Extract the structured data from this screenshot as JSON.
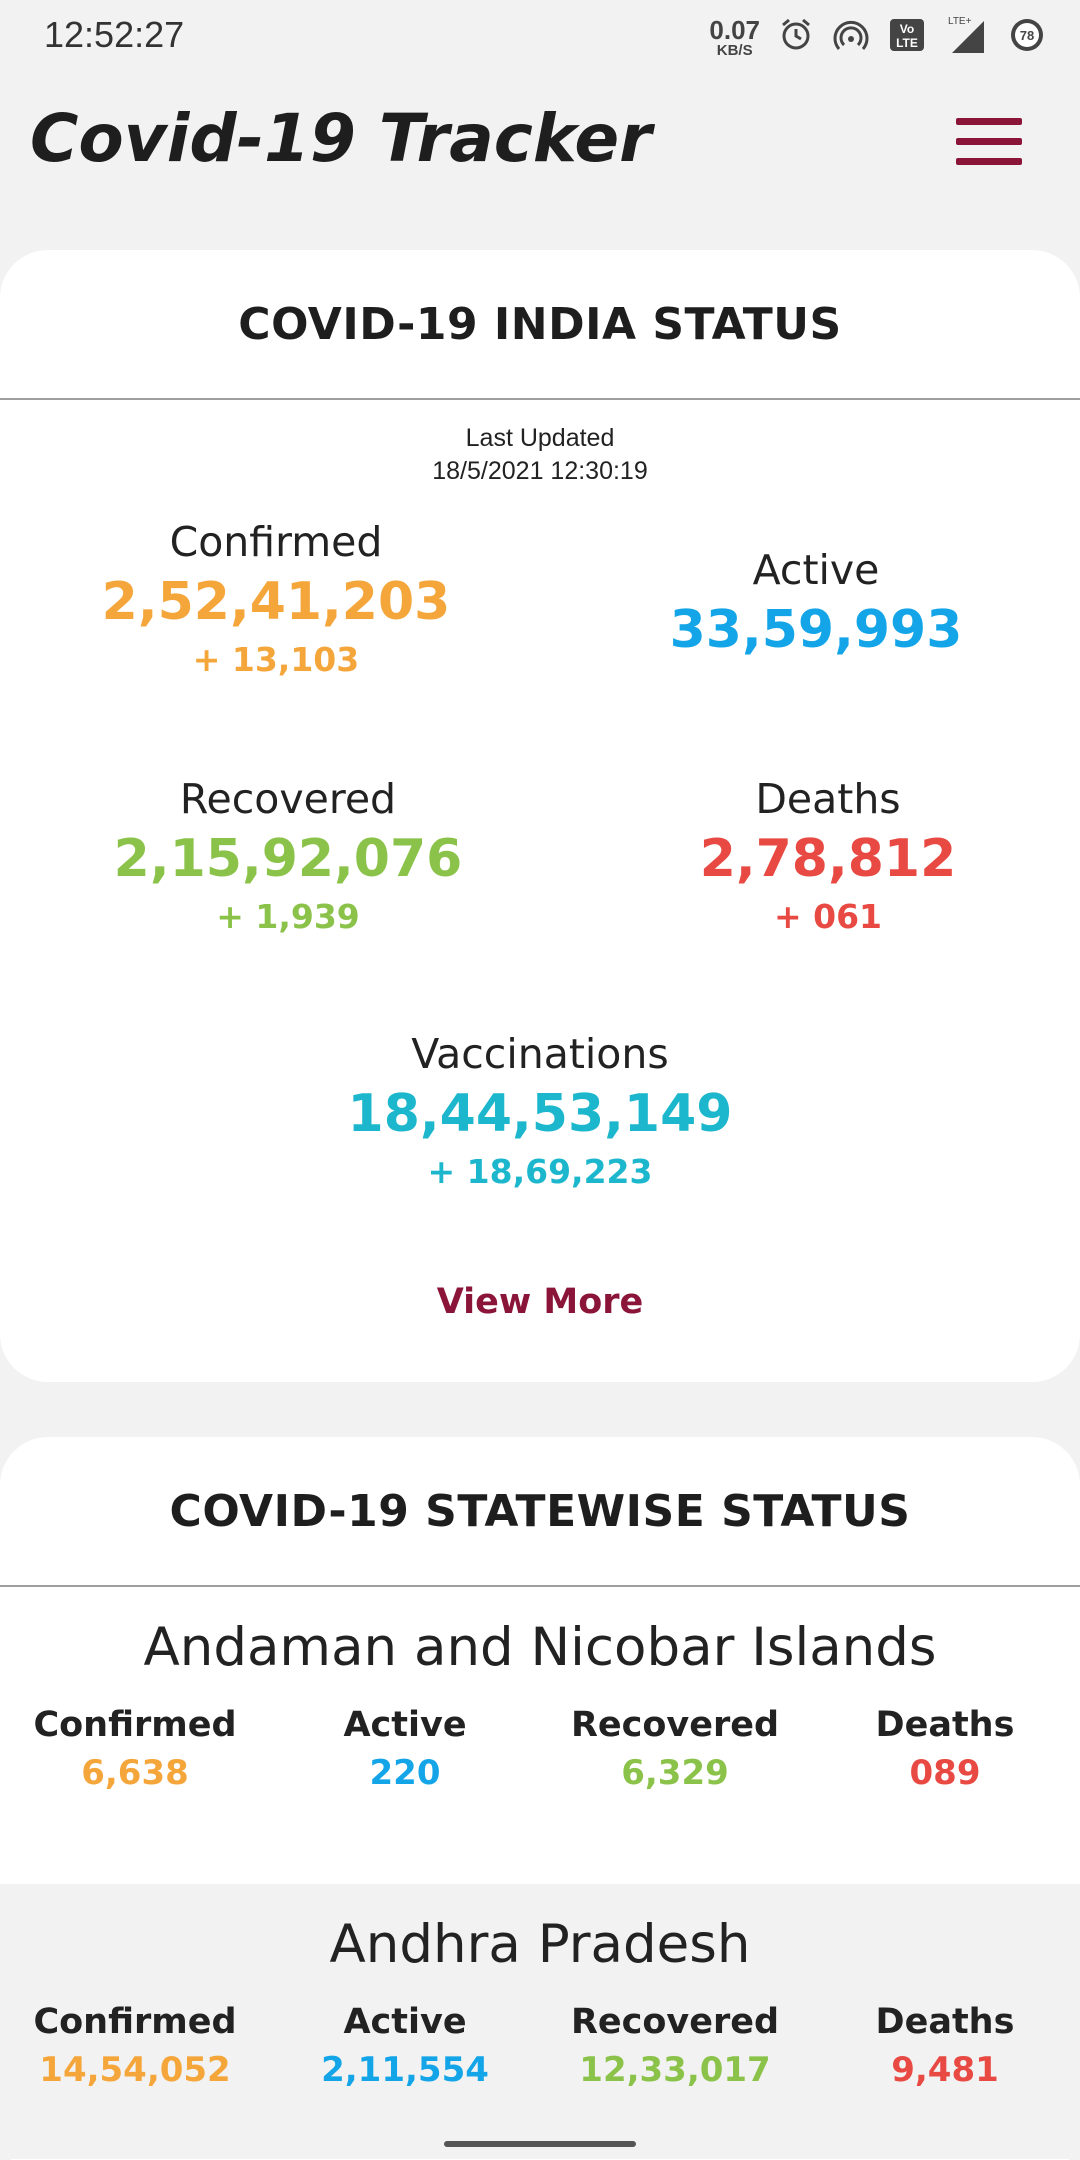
{
  "status_bar": {
    "time": "12:52:27",
    "net_speed_value": "0.07",
    "net_speed_unit": "KB/S",
    "volte_top": "Vo",
    "volte_bottom": "LTE",
    "lte_label": "LTE+",
    "battery": "78",
    "icons": [
      "alarm-icon",
      "hotspot-icon",
      "volte-icon",
      "signal-icon",
      "battery-icon"
    ]
  },
  "app_bar": {
    "title": "Covid-19 Tracker",
    "menu_icon": "hamburger-menu-icon"
  },
  "india_status": {
    "title": "Covid-19 India Status",
    "last_updated_label": "Last Updated",
    "last_updated_value": "18/5/2021 12:30:19",
    "confirmed": {
      "label": "Confirmed",
      "value": "2,52,41,203",
      "delta": "+ 13,103"
    },
    "active": {
      "label": "Active",
      "value": "33,59,993"
    },
    "recovered": {
      "label": "Recovered",
      "value": "2,15,92,076",
      "delta": "+ 1,939"
    },
    "deaths": {
      "label": "Deaths",
      "value": "2,78,812",
      "delta": "+ 061"
    },
    "vaccinations": {
      "label": "Vaccinations",
      "value": "18,44,53,149",
      "delta": "+ 18,69,223"
    },
    "view_more": "View More"
  },
  "statewise": {
    "title": "Covid-19 Statewise Status",
    "column_labels": {
      "confirmed": "Confirmed",
      "active": "Active",
      "recovered": "Recovered",
      "deaths": "Deaths"
    },
    "states": [
      {
        "name": "Andaman and Nicobar Islands",
        "confirmed": "6,638",
        "active": "220",
        "recovered": "6,329",
        "deaths": "089"
      },
      {
        "name": "Andhra Pradesh",
        "confirmed": "14,54,052",
        "active": "2,11,554",
        "recovered": "12,33,017",
        "deaths": "9,481"
      }
    ]
  },
  "colors": {
    "accent": "#8a1538",
    "confirmed": "#f5a63b",
    "active": "#14a5e8",
    "recovered": "#8bc34a",
    "deaths": "#e84a43",
    "vaccinations": "#1cb7cc"
  }
}
